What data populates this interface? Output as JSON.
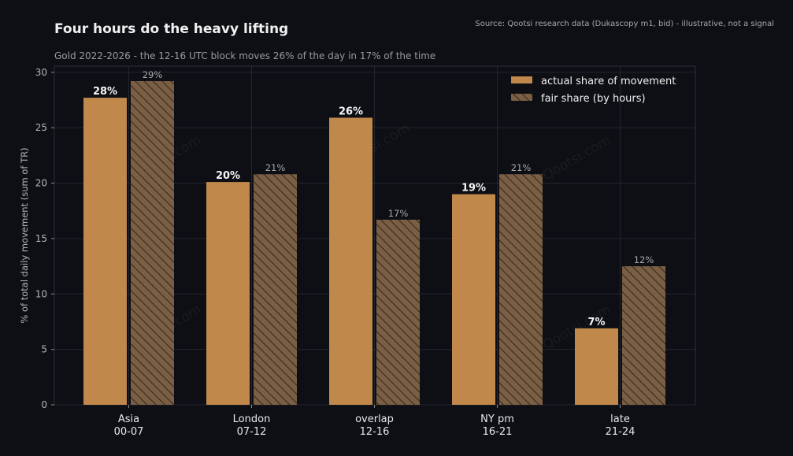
{
  "title": "Four hours do the heavy lifting",
  "subtitle": "Gold 2022-2026 - the 12-16 UTC block moves 26% of the day in 17% of the time",
  "source": "Source: Qootsi research data (Dukascopy m1, bid) - illustrative, not a signal",
  "watermark": "Qootsi.com",
  "colors": {
    "actual": "#c0884a",
    "fair": "#7a5f45",
    "fair_hatch": "#3e2e20",
    "background": "#0d0f14",
    "grid": "#23262e"
  },
  "chart_data": {
    "type": "bar",
    "categories": [
      "Asia",
      "London",
      "overlap",
      "NY pm",
      "late"
    ],
    "category_sublabels": [
      "00-07",
      "07-12",
      "12-16",
      "16-21",
      "21-24"
    ],
    "series": [
      {
        "name": "actual share of movement",
        "values": [
          27.7,
          20.1,
          25.9,
          19.0,
          6.9
        ],
        "labels": [
          "28%",
          "20%",
          "26%",
          "19%",
          "7%"
        ],
        "style": "solid"
      },
      {
        "name": "fair share (by hours)",
        "values": [
          29.2,
          20.8,
          16.7,
          20.8,
          12.5
        ],
        "labels": [
          "29%",
          "21%",
          "17%",
          "21%",
          "12%"
        ],
        "style": "hatched"
      }
    ],
    "xlabel": "",
    "ylabel": "% of total daily movement (sum of TR)",
    "ylim": [
      0,
      30.6
    ],
    "yticks": [
      0,
      5,
      10,
      15,
      20,
      25,
      30
    ],
    "grid": true,
    "legend_position": "top-right"
  }
}
